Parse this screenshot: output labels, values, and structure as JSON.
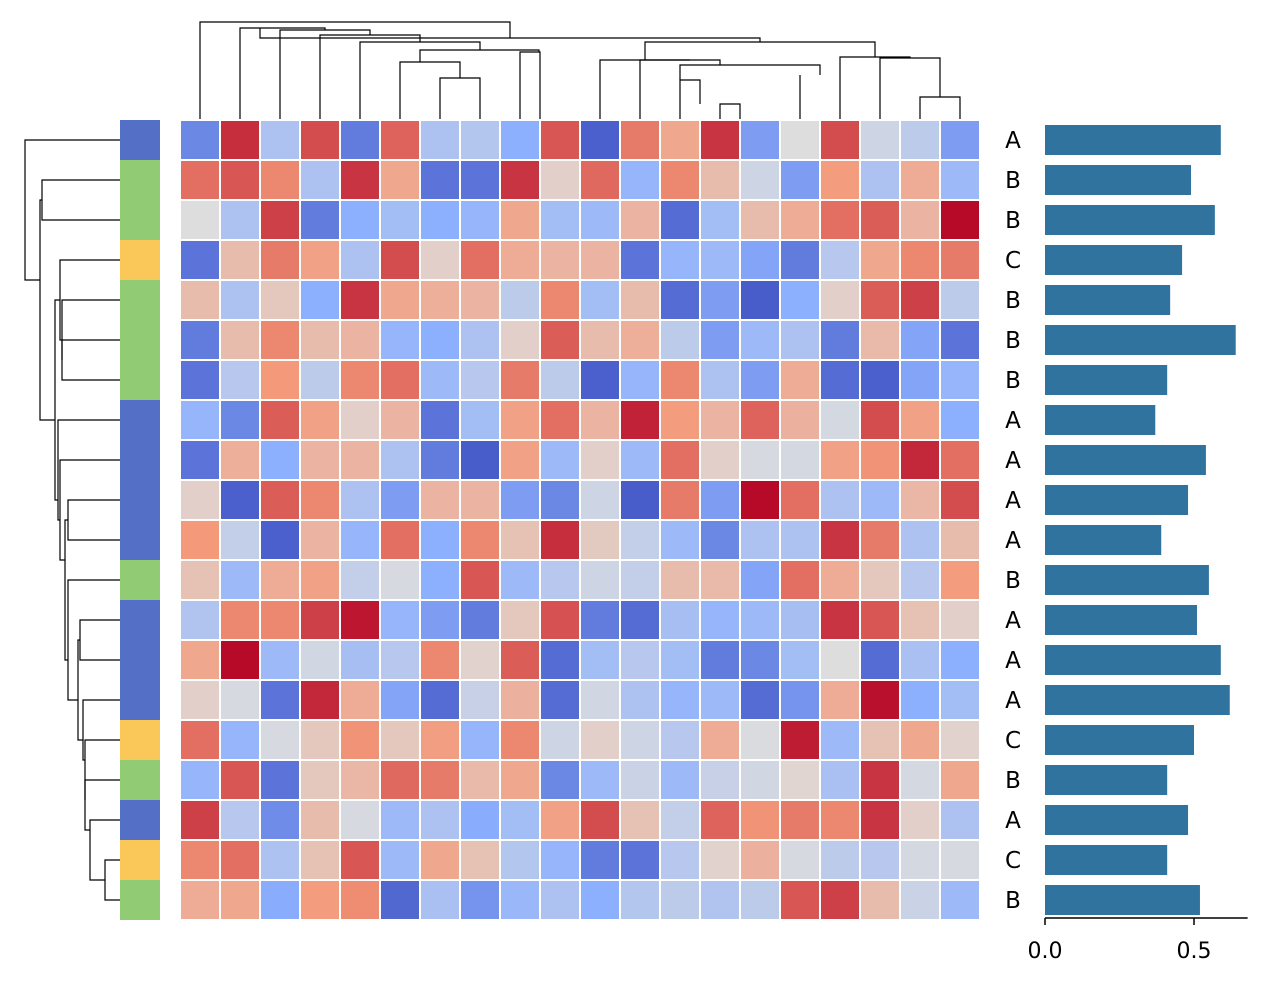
{
  "chart_data": [
    {
      "type": "heatmap",
      "title": "",
      "colormap": "coolwarm",
      "cell_gap_color": "#ffffff",
      "row_labels": [
        "A",
        "B",
        "B",
        "C",
        "B",
        "B",
        "B",
        "A",
        "A",
        "A",
        "A",
        "B",
        "A",
        "A",
        "A",
        "C",
        "B",
        "A",
        "C",
        "B"
      ],
      "row_group_colors": {
        "A": "#5470c6",
        "B": "#91cc75",
        "C": "#fac858"
      },
      "col_dendrogram": true,
      "row_dendrogram": true,
      "matrix": [
        [
          0.15,
          0.93,
          0.35,
          0.88,
          0.12,
          0.84,
          0.35,
          0.37,
          0.25,
          0.86,
          0.05,
          0.8,
          0.7,
          0.92,
          0.2,
          0.5,
          0.88,
          0.45,
          0.4,
          0.2
        ],
        [
          0.82,
          0.86,
          0.78,
          0.35,
          0.92,
          0.7,
          0.1,
          0.1,
          0.92,
          0.55,
          0.83,
          0.28,
          0.78,
          0.62,
          0.45,
          0.2,
          0.74,
          0.35,
          0.68,
          0.3
        ],
        [
          0.5,
          0.35,
          0.9,
          0.12,
          0.25,
          0.32,
          0.25,
          0.28,
          0.7,
          0.32,
          0.3,
          0.65,
          0.08,
          0.32,
          0.62,
          0.68,
          0.82,
          0.85,
          0.65,
          0.99
        ],
        [
          0.1,
          0.62,
          0.8,
          0.72,
          0.35,
          0.88,
          0.55,
          0.82,
          0.68,
          0.65,
          0.65,
          0.1,
          0.28,
          0.3,
          0.22,
          0.12,
          0.38,
          0.7,
          0.78,
          0.8
        ],
        [
          0.62,
          0.35,
          0.58,
          0.25,
          0.92,
          0.7,
          0.67,
          0.65,
          0.4,
          0.78,
          0.32,
          0.62,
          0.08,
          0.2,
          0.04,
          0.25,
          0.55,
          0.85,
          0.9,
          0.4
        ],
        [
          0.12,
          0.62,
          0.78,
          0.62,
          0.65,
          0.28,
          0.25,
          0.35,
          0.55,
          0.85,
          0.62,
          0.67,
          0.4,
          0.2,
          0.3,
          0.35,
          0.12,
          0.63,
          0.22,
          0.1
        ],
        [
          0.1,
          0.38,
          0.75,
          0.4,
          0.78,
          0.82,
          0.3,
          0.38,
          0.8,
          0.4,
          0.05,
          0.28,
          0.78,
          0.35,
          0.2,
          0.68,
          0.08,
          0.05,
          0.22,
          0.28
        ],
        [
          0.28,
          0.15,
          0.85,
          0.72,
          0.55,
          0.65,
          0.1,
          0.32,
          0.72,
          0.82,
          0.65,
          0.95,
          0.74,
          0.65,
          0.84,
          0.66,
          0.47,
          0.88,
          0.72,
          0.25
        ],
        [
          0.1,
          0.67,
          0.25,
          0.65,
          0.65,
          0.35,
          0.12,
          0.04,
          0.72,
          0.3,
          0.55,
          0.3,
          0.82,
          0.55,
          0.48,
          0.47,
          0.72,
          0.76,
          0.94,
          0.82
        ],
        [
          0.55,
          0.05,
          0.85,
          0.78,
          0.35,
          0.2,
          0.65,
          0.65,
          0.2,
          0.15,
          0.45,
          0.04,
          0.8,
          0.2,
          0.99,
          0.82,
          0.35,
          0.3,
          0.64,
          0.88
        ],
        [
          0.75,
          0.42,
          0.05,
          0.65,
          0.28,
          0.82,
          0.25,
          0.78,
          0.6,
          0.93,
          0.57,
          0.42,
          0.3,
          0.15,
          0.35,
          0.35,
          0.92,
          0.8,
          0.35,
          0.62
        ],
        [
          0.6,
          0.3,
          0.68,
          0.72,
          0.42,
          0.48,
          0.25,
          0.86,
          0.3,
          0.38,
          0.45,
          0.42,
          0.62,
          0.63,
          0.22,
          0.82,
          0.68,
          0.58,
          0.38,
          0.74
        ],
        [
          0.36,
          0.78,
          0.78,
          0.9,
          0.97,
          0.28,
          0.2,
          0.12,
          0.58,
          0.87,
          0.12,
          0.08,
          0.33,
          0.28,
          0.3,
          0.33,
          0.92,
          0.86,
          0.6,
          0.55
        ],
        [
          0.7,
          0.99,
          0.3,
          0.46,
          0.33,
          0.38,
          0.78,
          0.54,
          0.85,
          0.08,
          0.32,
          0.38,
          0.32,
          0.12,
          0.15,
          0.32,
          0.5,
          0.08,
          0.34,
          0.25
        ],
        [
          0.55,
          0.48,
          0.1,
          0.94,
          0.68,
          0.22,
          0.08,
          0.43,
          0.66,
          0.08,
          0.46,
          0.35,
          0.28,
          0.3,
          0.08,
          0.18,
          0.68,
          0.98,
          0.25,
          0.32
        ],
        [
          0.82,
          0.28,
          0.48,
          0.58,
          0.76,
          0.58,
          0.73,
          0.28,
          0.78,
          0.45,
          0.55,
          0.45,
          0.38,
          0.68,
          0.49,
          0.96,
          0.3,
          0.6,
          0.7,
          0.54
        ],
        [
          0.28,
          0.86,
          0.1,
          0.58,
          0.64,
          0.83,
          0.8,
          0.63,
          0.7,
          0.15,
          0.3,
          0.44,
          0.3,
          0.43,
          0.46,
          0.53,
          0.34,
          0.92,
          0.47,
          0.7
        ],
        [
          0.9,
          0.38,
          0.16,
          0.62,
          0.48,
          0.3,
          0.35,
          0.24,
          0.32,
          0.72,
          0.88,
          0.6,
          0.42,
          0.84,
          0.76,
          0.8,
          0.78,
          0.92,
          0.55,
          0.35
        ],
        [
          0.78,
          0.82,
          0.35,
          0.6,
          0.86,
          0.3,
          0.7,
          0.6,
          0.37,
          0.28,
          0.12,
          0.1,
          0.38,
          0.54,
          0.66,
          0.48,
          0.4,
          0.38,
          0.47,
          0.48
        ],
        [
          0.68,
          0.7,
          0.24,
          0.74,
          0.77,
          0.07,
          0.34,
          0.18,
          0.29,
          0.35,
          0.25,
          0.37,
          0.4,
          0.36,
          0.4,
          0.86,
          0.9,
          0.62,
          0.44,
          0.3
        ]
      ]
    },
    {
      "type": "bar",
      "orientation": "horizontal",
      "categories": [
        "A",
        "B",
        "B",
        "C",
        "B",
        "B",
        "B",
        "A",
        "A",
        "A",
        "A",
        "B",
        "A",
        "A",
        "A",
        "C",
        "B",
        "A",
        "C",
        "B"
      ],
      "values": [
        0.59,
        0.49,
        0.57,
        0.46,
        0.42,
        0.64,
        0.41,
        0.37,
        0.54,
        0.48,
        0.39,
        0.55,
        0.51,
        0.59,
        0.62,
        0.5,
        0.41,
        0.48,
        0.41,
        0.52
      ],
      "xlim": [
        0,
        0.68
      ],
      "xticks": [
        0.0,
        0.5
      ],
      "xtick_labels": [
        "0.0",
        "0.5"
      ],
      "bar_color": "#31739f",
      "xlabel": "",
      "ylabel": ""
    }
  ]
}
